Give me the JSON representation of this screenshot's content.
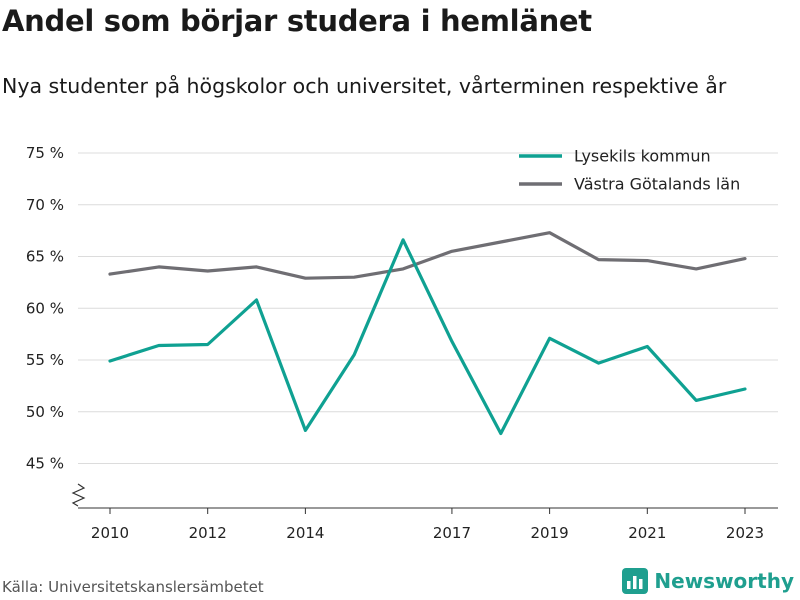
{
  "header": {
    "title": "Andel som börjar studera i hemlänet",
    "subtitle": "Nya studenter på högskolor och universitet, vårterminen respektive år"
  },
  "footer": {
    "source": "Källa: Universitetskanslersämbetet",
    "brand": "Newsworthy",
    "brand_icon": "bar-chart-logo-icon"
  },
  "colors": {
    "lysekil": "#0fa192",
    "vastra": "#6f6e73",
    "grid": "#dcdcdc",
    "axis": "#333333",
    "brand": "#1f9f8f"
  },
  "chart_data": {
    "type": "line",
    "title": "Andel som börjar studera i hemlänet",
    "subtitle": "Nya studenter på högskolor och universitet, vårterminen respektive år",
    "xlabel": "",
    "ylabel": "",
    "x": [
      2010,
      2011,
      2012,
      2013,
      2014,
      2015,
      2016,
      2017,
      2018,
      2019,
      2020,
      2021,
      2022,
      2023
    ],
    "xticks": [
      2010,
      2012,
      2014,
      2017,
      2019,
      2021,
      2023
    ],
    "xtick_labels": [
      "2010",
      "2012",
      "2014",
      "2017",
      "2019",
      "2021",
      "2023"
    ],
    "ylim": [
      45,
      75
    ],
    "yticks": [
      45,
      50,
      55,
      60,
      65,
      70,
      75
    ],
    "ytick_labels": [
      "45 %",
      "50 %",
      "55 %",
      "60 %",
      "65 %",
      "70 %",
      "75 %"
    ],
    "axis_break": true,
    "grid": true,
    "legend_position": "top-right",
    "series": [
      {
        "name": "Lysekils kommun",
        "values": [
          54.9,
          56.4,
          56.5,
          60.8,
          48.2,
          55.5,
          66.6,
          56.8,
          47.9,
          57.1,
          54.7,
          56.3,
          51.1,
          52.2
        ]
      },
      {
        "name": "Västra Götalands län",
        "values": [
          63.3,
          64.0,
          63.6,
          64.0,
          62.9,
          63.0,
          63.8,
          65.5,
          66.4,
          67.3,
          64.7,
          64.6,
          63.8,
          64.8
        ]
      }
    ]
  }
}
